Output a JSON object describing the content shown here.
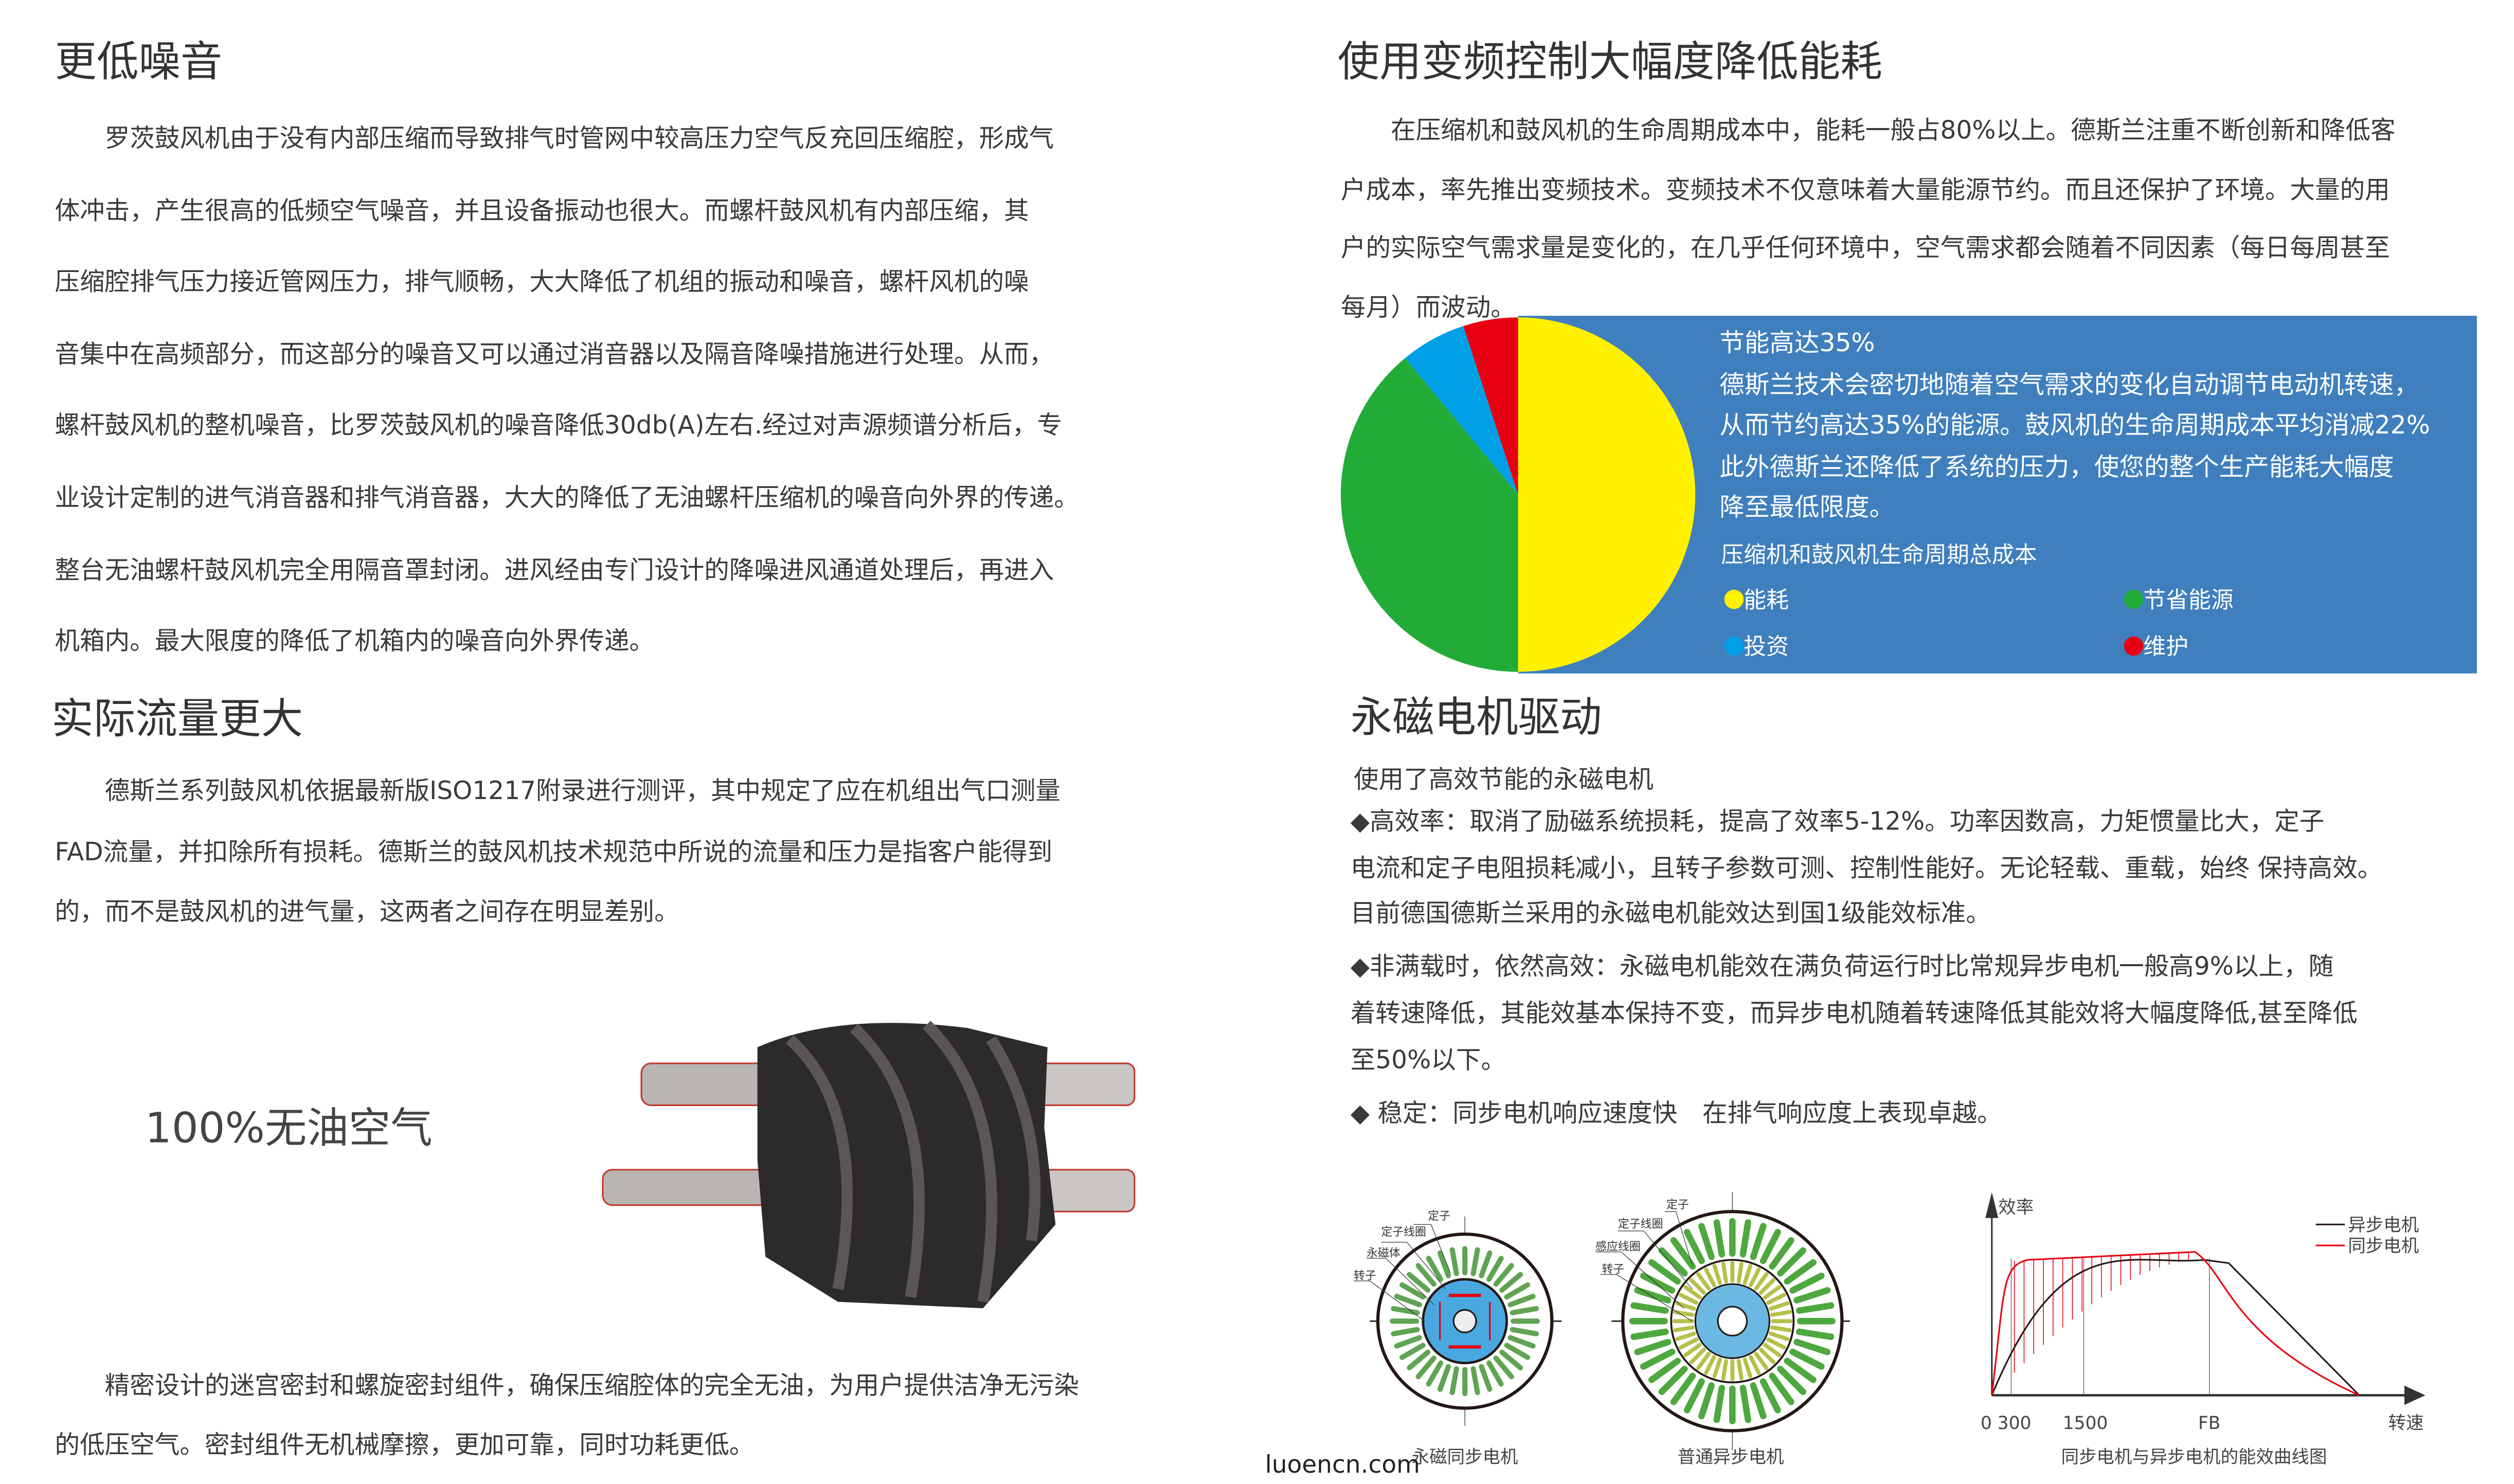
{
  "left": {
    "section1": {
      "title": "更低噪音",
      "lines": [
        "　　罗茨鼓风机由于没有内部压缩而导致排气时管网中较高压力空气反充回压缩腔，形成气",
        "体冲击，产生很高的低频空气噪音，并且设备振动也很大。而螺杆鼓风机有内部压缩，其",
        "压缩腔排气压力接近管网压力，排气顺畅，大大降低了机组的振动和噪音，螺杆风机的噪",
        "音集中在高频部分，而这部分的噪音又可以通过消音器以及隔音降噪措施进行处理。从而，",
        "螺杆鼓风机的整机噪音，比罗茨鼓风机的噪音降低30db(A)左右.经过对声源频谱分析后，专",
        "业设计定制的进气消音器和排气消音器，大大的降低了无油螺杆压缩机的噪音向外界的传递。",
        "整台无油螺杆鼓风机完全用隔音罩封闭。进风经由专门设计的降噪进风通道处理后，再进入",
        "机箱内。最大限度的降低了机箱内的噪音向外界传递。"
      ]
    },
    "section2": {
      "title": "实际流量更大",
      "lines": [
        "　　德斯兰系列鼓风机依据最新版ISO1217附录进行测评，其中规定了应在机组出气口测量",
        "FAD流量，并扣除所有损耗。德斯兰的鼓风机技术规范中所说的流量和压力是指客户能得到",
        "的，而不是鼓风机的进气量，这两者之间存在明显差别。"
      ]
    },
    "oilfree_label": "100%无油空气",
    "section3": {
      "lines": [
        "　　精密设计的迷宫密封和螺旋密封组件，确保压缩腔体的完全无油，为用户提供洁净无污染",
        "的低压空气。密封组件无机械摩擦，更加可靠，同时功耗更低。"
      ]
    }
  },
  "right": {
    "section1": {
      "title": "使用变频控制大幅度降低能耗",
      "lines": [
        "　　在压缩机和鼓风机的生命周期成本中，能耗一般占80%以上。德斯兰注重不断创新和降低客",
        "户成本，率先推出变频技术。变频技术不仅意味着大量能源节约。而且还保护了环境。大量的用",
        "户的实际空气需求量是变化的，在几乎任何环境中，空气需求都会随着不同因素（每日每周甚至",
        "每月）而波动。"
      ]
    },
    "infobox": {
      "background": "#3f7fbd",
      "lines": [
        "节能高达35%",
        "德斯兰技术会密切地随着空气需求的变化自动调节电动机转速，",
        "从而节约高达35%的能源。鼓风机的生命周期成本平均消减22%",
        "此外德斯兰还降低了系统的压力，使您的整个生产能耗大幅度",
        "降至最低限度。"
      ],
      "legend_title": "压缩机和鼓风机生命周期总成本",
      "legend": [
        {
          "label": "能耗",
          "color": "#fff100",
          "share": 50
        },
        {
          "label": "节省能源",
          "color": "#23ab38",
          "share": 39
        },
        {
          "label": "投资",
          "color": "#009fe6",
          "share": 6
        },
        {
          "label": "维护",
          "color": "#e60012",
          "share": 5
        }
      ]
    },
    "section2": {
      "title": "永磁电机驱动",
      "subtitle": "使用了高效节能的永磁电机",
      "lines": [
        "◆高效率：取消了励磁系统损耗，提高了效率5-12%。功率因数高，力矩惯量比大，定子",
        "电流和定子电阻损耗减小，且转子参数可测、控制性能好。无论轻载、重载，始终 保持高效。",
        "目前德国德斯兰采用的永磁电机能效达到国1级能效标准。",
        "◆非满载时，依然高效：永磁电机能效在满负荷运行时比常规异步电机一般高9%以上，随",
        "着转速降低，其能效基本保持不变，而异步电机随着转速降低其能效将大幅度降低,甚至降低",
        "至50%以下。",
        "◆ 稳定：同步电机响应速度快　在排气响应度上表现卓越。"
      ]
    },
    "motor1": {
      "caption": "永磁同步电机",
      "labels": [
        "定子",
        "定子线圈",
        "永磁体",
        "转子"
      ]
    },
    "motor2": {
      "caption": "普通异步电机",
      "labels": [
        "定子",
        "定子线圈",
        "感应线圈",
        "转子"
      ]
    },
    "curve": {
      "caption": "同步电机与异步电机的能效曲线图",
      "y_label": "效率",
      "x_label": "转速",
      "x_ticks": [
        "0 300",
        "1500",
        "FB"
      ],
      "legend": [
        {
          "label": "异步电机",
          "color": "#231815"
        },
        {
          "label": "同步电机",
          "color": "#e60012"
        }
      ]
    }
  },
  "watermark": "luoencn.com"
}
